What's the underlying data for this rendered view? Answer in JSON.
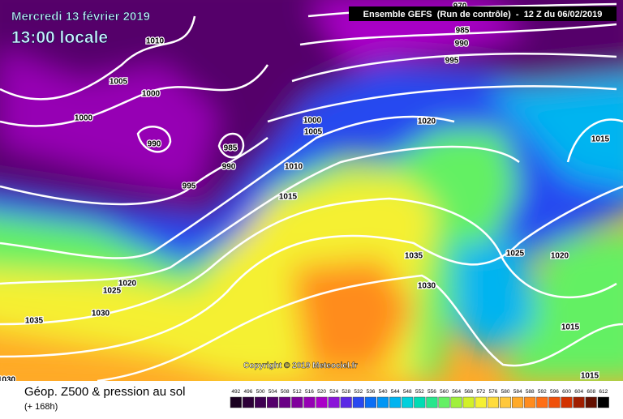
{
  "header": {
    "date": "Mercredi 13 février 2019",
    "time": "13:00 locale",
    "model": "Ensemble GEFS  (Run de contrôle)  -  12 Z du 06/02/2019"
  },
  "copyright": "Copyright © 2019 Meteociel.fr",
  "footer": {
    "title": "Géop. Z500 & pression au sol",
    "subtitle": "(+ 168h)"
  },
  "legend": {
    "labels": [
      "492",
      "496",
      "500",
      "504",
      "508",
      "512",
      "516",
      "520",
      "524",
      "528",
      "532",
      "536",
      "540",
      "544",
      "548",
      "552",
      "556",
      "560",
      "564",
      "568",
      "572",
      "576",
      "580",
      "584",
      "588",
      "592",
      "596",
      "600",
      "604",
      "608",
      "612"
    ],
    "colors": [
      "#1a0020",
      "#2d0038",
      "#3f0052",
      "#55006b",
      "#6a0085",
      "#80009c",
      "#9600b4",
      "#aa00c8",
      "#8a14d8",
      "#5a28e6",
      "#2848f0",
      "#0a6ef5",
      "#0096f5",
      "#00b4f0",
      "#00d0dc",
      "#00dcb4",
      "#28e68c",
      "#64f064",
      "#a0f03c",
      "#d2f028",
      "#f5f032",
      "#ffdc3c",
      "#ffc83c",
      "#ffaa28",
      "#ff8c1e",
      "#ff6e14",
      "#f0500a",
      "#d23200",
      "#a01e00",
      "#641000",
      "#000000"
    ]
  },
  "isobar_labels": [
    "970",
    "985",
    "990",
    "995",
    "1010",
    "1005",
    "1000",
    "1000",
    "990",
    "985",
    "990",
    "995",
    "1000",
    "1005",
    "1010",
    "1015",
    "1020",
    "1015",
    "1035",
    "1025",
    "1020",
    "1030",
    "1020",
    "1025",
    "1030",
    "1035",
    "1015",
    "1015",
    "1030"
  ]
}
